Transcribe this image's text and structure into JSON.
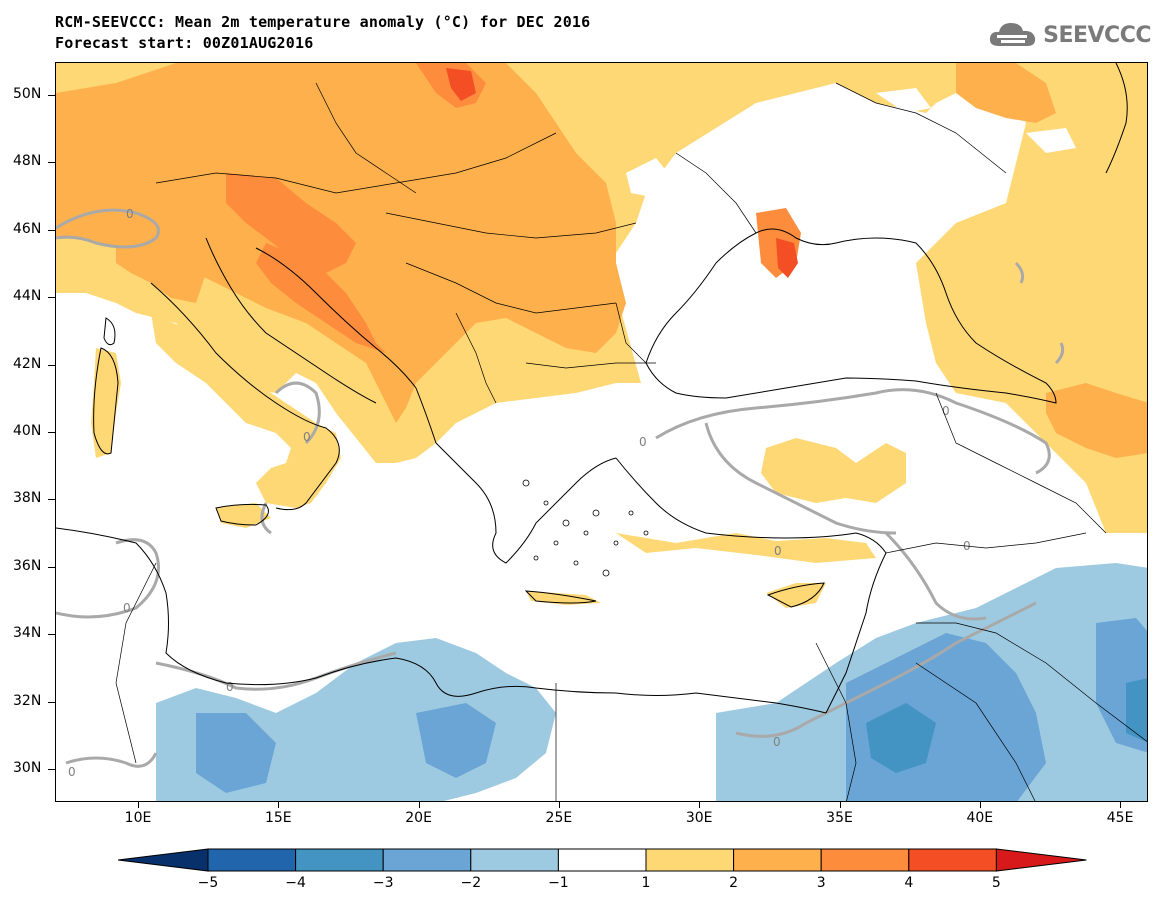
{
  "header": {
    "title_line1": "RCM-SEEVCCC: Mean 2m temperature anomaly (°C) for DEC 2016",
    "title_line2": "Forecast start: 00Z01AUG2016"
  },
  "logo": {
    "text": "SEEVCCC",
    "icon": "cloud-icon",
    "color": "#7a7a7a"
  },
  "map": {
    "lat_ticks": [
      "50N",
      "48N",
      "46N",
      "44N",
      "42N",
      "40N",
      "38N",
      "36N",
      "34N",
      "32N",
      "30N"
    ],
    "lon_ticks": [
      "10E",
      "15E",
      "20E",
      "25E",
      "30E",
      "35E",
      "40E",
      "45E"
    ],
    "contour_label": "0"
  },
  "colorbar": {
    "labels": [
      "−5",
      "−4",
      "−3",
      "−2",
      "−1",
      "1",
      "2",
      "3",
      "4",
      "5"
    ],
    "colors": [
      "#08306b",
      "#2166ac",
      "#4393c3",
      "#6aa5d6",
      "#9ecae1",
      "#ffffff",
      "#ffd876",
      "#fdb04c",
      "#fd8c3c",
      "#f44e24",
      "#d7191c"
    ]
  }
}
